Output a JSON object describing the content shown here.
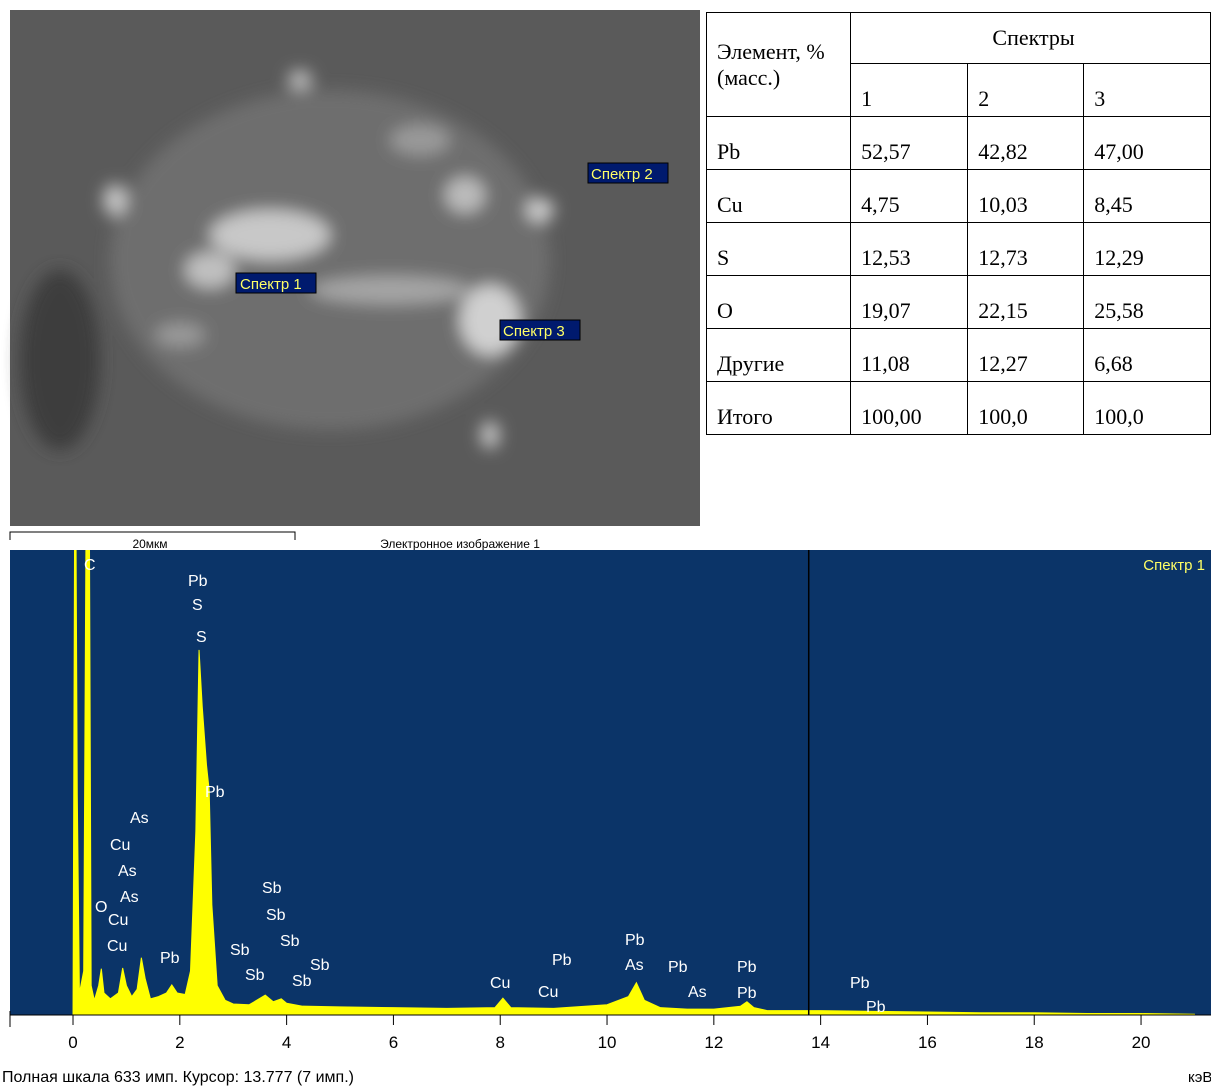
{
  "image": {
    "labels": [
      "Спектр 1",
      "Спектр 2",
      "Спектр 3"
    ],
    "scale_bar": "20мкм",
    "caption": "Электронное изображение 1"
  },
  "table": {
    "header": [
      "Элемент, % (масс.)",
      "Спектры"
    ],
    "spectra": [
      "1",
      "2",
      "3"
    ],
    "rows": [
      [
        "Pb",
        "52,57",
        "42,82",
        "47,00"
      ],
      [
        "Cu",
        "4,75",
        "10,03",
        "8,45"
      ],
      [
        "S",
        "12,53",
        "12,73",
        "12,29"
      ],
      [
        "O",
        "19,07",
        "22,15",
        "25,58"
      ],
      [
        "Другие",
        "11,08",
        "12,27",
        "6,68"
      ],
      [
        "Итого",
        "100,00",
        "100,0",
        "100,0"
      ]
    ]
  },
  "chart_data": {
    "type": "area",
    "legend": "Спектр 1",
    "x_label": "кэВ",
    "footer": "Полная шкала 633 имп. Курсор: 13.777  (7 имп.)",
    "cursor": 13.777,
    "color": "#ffff00",
    "background": "#0b3468",
    "xlim": [
      -1.18,
      21.31
    ],
    "ylim": [
      0,
      633
    ],
    "xticks": [
      0,
      2,
      4,
      6,
      8,
      10,
      12,
      14,
      16,
      18,
      20
    ],
    "x": [
      0.0,
      0.04,
      0.08,
      0.12,
      0.2,
      0.26,
      0.3,
      0.34,
      0.4,
      0.48,
      0.53,
      0.58,
      0.7,
      0.85,
      0.93,
      1.0,
      1.1,
      1.2,
      1.28,
      1.35,
      1.45,
      1.6,
      1.75,
      1.85,
      1.95,
      2.1,
      2.2,
      2.3,
      2.36,
      2.42,
      2.5,
      2.55,
      2.6,
      2.7,
      2.85,
      3.0,
      3.3,
      3.6,
      3.75,
      3.9,
      4.0,
      4.3,
      5,
      6,
      7,
      7.9,
      8.05,
      8.2,
      9,
      10,
      10.4,
      10.55,
      10.7,
      11,
      11.5,
      12,
      12.5,
      12.62,
      12.75,
      13,
      14,
      15,
      16,
      17,
      18,
      19,
      20,
      21
    ],
    "values": [
      0,
      900,
      300,
      30,
      60,
      900,
      800,
      40,
      20,
      40,
      63,
      30,
      22,
      30,
      64,
      40,
      25,
      35,
      78,
      50,
      22,
      25,
      30,
      41,
      30,
      28,
      60,
      250,
      497,
      420,
      340,
      306,
      150,
      40,
      20,
      15,
      14,
      27,
      18,
      22,
      16,
      12,
      11,
      10,
      9,
      10,
      23,
      10,
      9,
      14,
      25,
      44,
      20,
      10,
      8,
      8,
      12,
      18,
      10,
      6,
      6,
      5,
      4,
      3,
      3,
      2,
      2,
      1
    ],
    "peak_labels": [
      "C",
      "Pb",
      "S",
      "S",
      "Pb",
      "As",
      "Cu",
      "As",
      "As",
      "O",
      "Cu",
      "Cu",
      "Pb",
      "Sb",
      "Sb",
      "Sb",
      "Sb",
      "Sb",
      "Sb",
      "Sb",
      "Cu",
      "Cu",
      "Pb",
      "Pb",
      "As",
      "Pb",
      "As",
      "Pb",
      "Pb",
      "Pb",
      "Pb"
    ]
  }
}
